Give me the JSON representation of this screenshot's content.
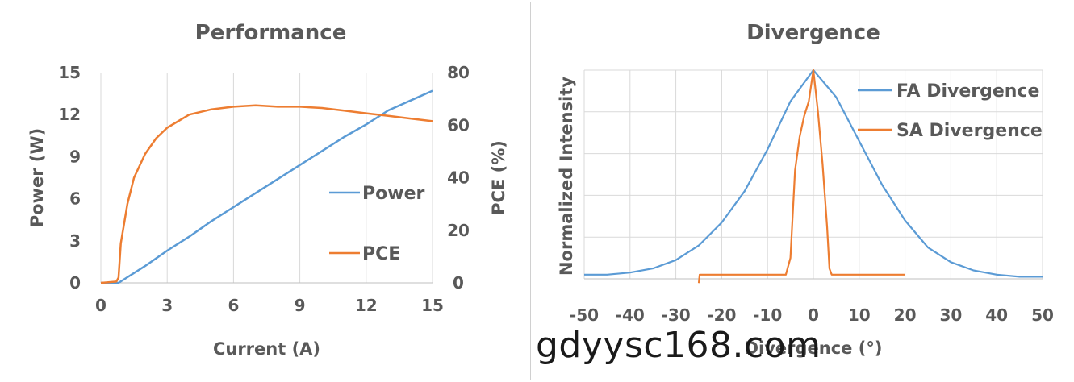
{
  "chart_data": [
    {
      "type": "line",
      "title": "Performance",
      "xlabel": "Current (A)",
      "ylabel": "Power (W)",
      "y2label": "PCE (%)",
      "xlim": [
        0,
        15
      ],
      "ylim": [
        0,
        15
      ],
      "y2lim": [
        0,
        80
      ],
      "xticks": [
        "0",
        "3",
        "6",
        "9",
        "12",
        "15"
      ],
      "yticks": [
        "0",
        "3",
        "6",
        "9",
        "12",
        "15"
      ],
      "y2ticks": [
        "0",
        "20",
        "40",
        "60",
        "80"
      ],
      "grid": "vertical",
      "legend_position": "right-middle",
      "series": [
        {
          "name": "Power",
          "axis": "left",
          "color": "#5b9bd5",
          "x": [
            0,
            0.8,
            1,
            2,
            3,
            4,
            5,
            6,
            7,
            8,
            9,
            10,
            11,
            12,
            13,
            14,
            15
          ],
          "y": [
            0,
            0,
            0.2,
            1.2,
            2.3,
            3.3,
            4.4,
            5.4,
            6.4,
            7.4,
            8.4,
            9.4,
            10.4,
            11.3,
            12.3,
            13.0,
            13.7
          ]
        },
        {
          "name": "PCE",
          "axis": "right",
          "color": "#ed7d31",
          "x": [
            0,
            0.7,
            0.8,
            0.9,
            1.2,
            1.5,
            2,
            2.5,
            3,
            4,
            5,
            6,
            7,
            8,
            9,
            10,
            11,
            12,
            13,
            14,
            15
          ],
          "y": [
            0,
            0.5,
            2,
            15,
            30,
            40,
            49,
            55,
            59,
            64,
            66,
            67,
            67.5,
            67,
            67,
            66.5,
            65.5,
            64.5,
            63.5,
            62.5,
            61.5
          ]
        }
      ]
    },
    {
      "type": "line",
      "title": "Divergence",
      "xlabel": "Divergence (°)",
      "ylabel": "Normalized  Intensity",
      "xlim": [
        -50,
        50
      ],
      "ylim": [
        0,
        1
      ],
      "xticks": [
        "-50",
        "-40",
        "-30",
        "-20",
        "-10",
        "0",
        "10",
        "20",
        "30",
        "40",
        "50"
      ],
      "grid": "both",
      "legend_position": "top-right",
      "series": [
        {
          "name": "FA Divergence",
          "color": "#5b9bd5",
          "x": [
            -50,
            -45,
            -40,
            -35,
            -30,
            -25,
            -20,
            -15,
            -10,
            -5,
            0,
            5,
            10,
            15,
            20,
            25,
            30,
            35,
            40,
            45,
            50
          ],
          "y": [
            0.02,
            0.02,
            0.03,
            0.05,
            0.09,
            0.16,
            0.27,
            0.42,
            0.62,
            0.85,
            1.0,
            0.87,
            0.66,
            0.45,
            0.28,
            0.15,
            0.08,
            0.04,
            0.02,
            0.01,
            0.01
          ]
        },
        {
          "name": "SA Divergence",
          "color": "#ed7d31",
          "x": [
            -25,
            -24.8,
            -6,
            -5,
            -4,
            -3,
            -2,
            -1,
            0,
            1,
            2,
            3,
            3.5,
            4,
            20
          ],
          "y": [
            -0.02,
            0.02,
            0.02,
            0.1,
            0.52,
            0.68,
            0.78,
            0.85,
            1.0,
            0.8,
            0.55,
            0.25,
            0.05,
            0.02,
            0.02
          ]
        }
      ]
    }
  ],
  "watermark": "gdyysc168.com"
}
